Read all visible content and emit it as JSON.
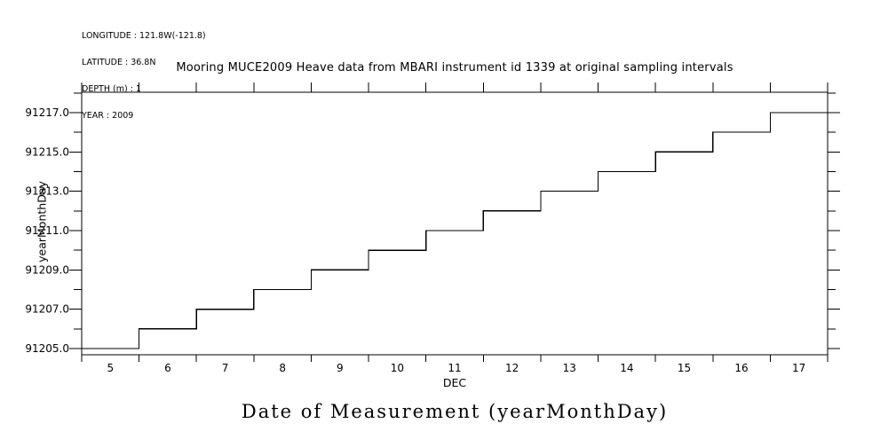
{
  "page": {
    "background": "#ffffff",
    "text_color": "#000000"
  },
  "header_info": {
    "longitude_line": "LONGITUDE : 121.8W(-121.8)",
    "latitude_line": "LATITUDE : 36.8N",
    "depth_line": "DEPTH (m) : 1",
    "year_line": "YEAR : 2009"
  },
  "chart_data": {
    "type": "line",
    "subtype": "staircase-step",
    "title": "Mooring MUCE2009 Heave data from MBARI instrument id 1339 at original sampling intervals",
    "ylabel": "yearMonthDay",
    "x_month_label": "DEC",
    "x_axis_title": "Date of Measurement (yearMonthDay)",
    "x_day_categories": [
      5,
      6,
      7,
      8,
      9,
      10,
      11,
      12,
      13,
      14,
      15,
      16,
      17
    ],
    "step_values": [
      91205,
      91206,
      91207,
      91208,
      91209,
      91210,
      91211,
      91212,
      91213,
      91214,
      91215,
      91216,
      91217
    ],
    "y_major_tick_labels": [
      "91205.0",
      "91207.0",
      "91209.0",
      "91211.0",
      "91213.0",
      "91215.0",
      "91217.0"
    ],
    "y_major_tick_values": [
      91205,
      91207,
      91209,
      91211,
      91213,
      91215,
      91217
    ],
    "y_minor_tick_interval": 1,
    "ylim": [
      91204.7,
      91218.0
    ],
    "xlim_days": [
      5,
      17
    ],
    "grid": false,
    "legend": false,
    "line_color": "#000000",
    "frame_style": "box-with-outward-ticks"
  }
}
